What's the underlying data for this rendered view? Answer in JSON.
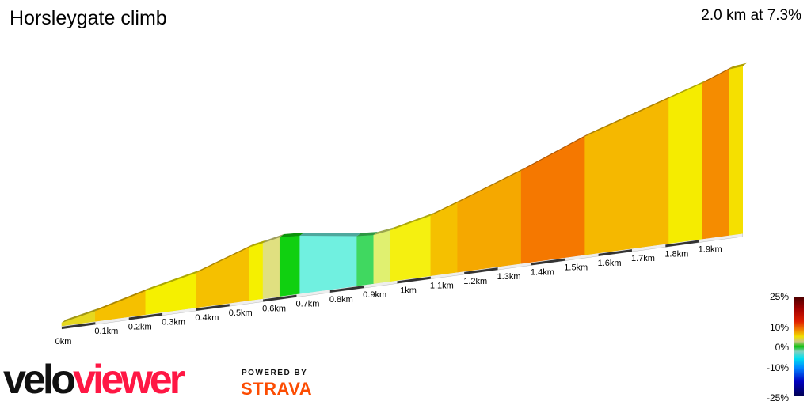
{
  "header": {
    "title": "Horsleygate climb",
    "summary": "2.0 km at 7.3%"
  },
  "chart_data": {
    "type": "area",
    "title": "Horsleygate climb",
    "subtitle": "2.0 km at 7.3%",
    "x_unit": "km",
    "x_ticks": [
      "0km",
      "0.1km",
      "0.2km",
      "0.3km",
      "0.4km",
      "0.5km",
      "0.6km",
      "0.7km",
      "0.8km",
      "0.9km",
      "1km",
      "1.1km",
      "1.2km",
      "1.3km",
      "1.4km",
      "1.5km",
      "1.6km",
      "1.7km",
      "1.8km",
      "1.9km"
    ],
    "distance_km": [
      0,
      0.1,
      0.25,
      0.4,
      0.56,
      0.6,
      0.65,
      0.71,
      0.88,
      0.93,
      0.98,
      1.1,
      1.18,
      1.37,
      1.56,
      1.81,
      1.91,
      1.99,
      2.03
    ],
    "elevation_gain_m": [
      0,
      6,
      17.5,
      27,
      43,
      45,
      48,
      47,
      40,
      39,
      41,
      49,
      57,
      77,
      99,
      122,
      131,
      140,
      141
    ],
    "segment_colors": [
      "#e6d820",
      "#f5c000",
      "#f5f000",
      "#f5c000",
      "#f5f000",
      "#e0e080",
      "#10d010",
      "#70f0e0",
      "#40d860",
      "#e0f070",
      "#f5f010",
      "#f5c000",
      "#f5a800",
      "#f57800",
      "#f5b800",
      "#f5ec00",
      "#f58c00",
      "#f5e000"
    ],
    "legend": {
      "labels": [
        "25%",
        "10%",
        "0%",
        "-10%",
        "-25%"
      ],
      "range": [
        -25,
        25
      ]
    }
  },
  "branding": {
    "logo_part1": "velo",
    "logo_part2": "viewer",
    "powered_by": "POWERED BY",
    "strava": "STRAVA"
  }
}
